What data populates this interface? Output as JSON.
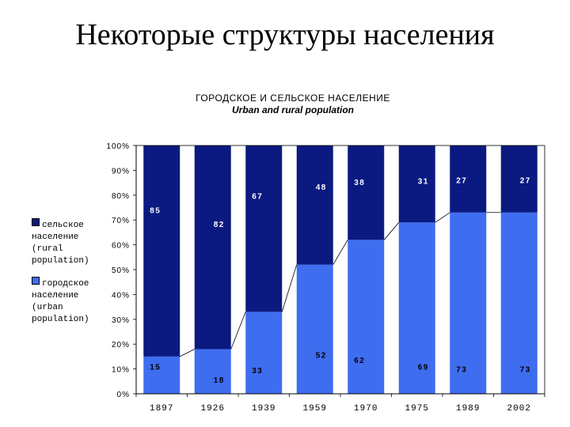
{
  "slide_title": "Некоторые структуры населения",
  "colors": {
    "rural": "#0a1a80",
    "urban": "#3f6df0",
    "urban_label": "#000000",
    "rural_label": "#ffffff"
  },
  "legend": [
    {
      "key": "rural",
      "label": "сельское\nнаселение\n(rural\npopulation)"
    },
    {
      "key": "urban",
      "label": "городское\nнаселение\n(urban\npopulation)"
    }
  ],
  "chart_data": {
    "type": "bar",
    "stacked": true,
    "title": "ГОРОДСКОЕ И СЕЛЬСКОЕ НАСЕЛЕНИЕ",
    "subtitle": "Urban and rural population",
    "categories": [
      "1897",
      "1926",
      "1939",
      "1959",
      "1970",
      "1975",
      "1989",
      "2002"
    ],
    "series": [
      {
        "name": "городское население (urban population)",
        "key": "urban",
        "values": [
          15,
          18,
          33,
          52,
          62,
          69,
          73,
          73
        ]
      },
      {
        "name": "сельское население (rural population)",
        "key": "rural",
        "values": [
          85,
          82,
          67,
          48,
          38,
          31,
          27,
          27
        ]
      }
    ],
    "y_ticks": [
      "0%",
      "10%",
      "20%",
      "30%",
      "40%",
      "50%",
      "60%",
      "70%",
      "80%",
      "90%",
      "100%"
    ],
    "ylim": [
      0,
      100
    ],
    "legend_position": "left",
    "grid": false
  }
}
